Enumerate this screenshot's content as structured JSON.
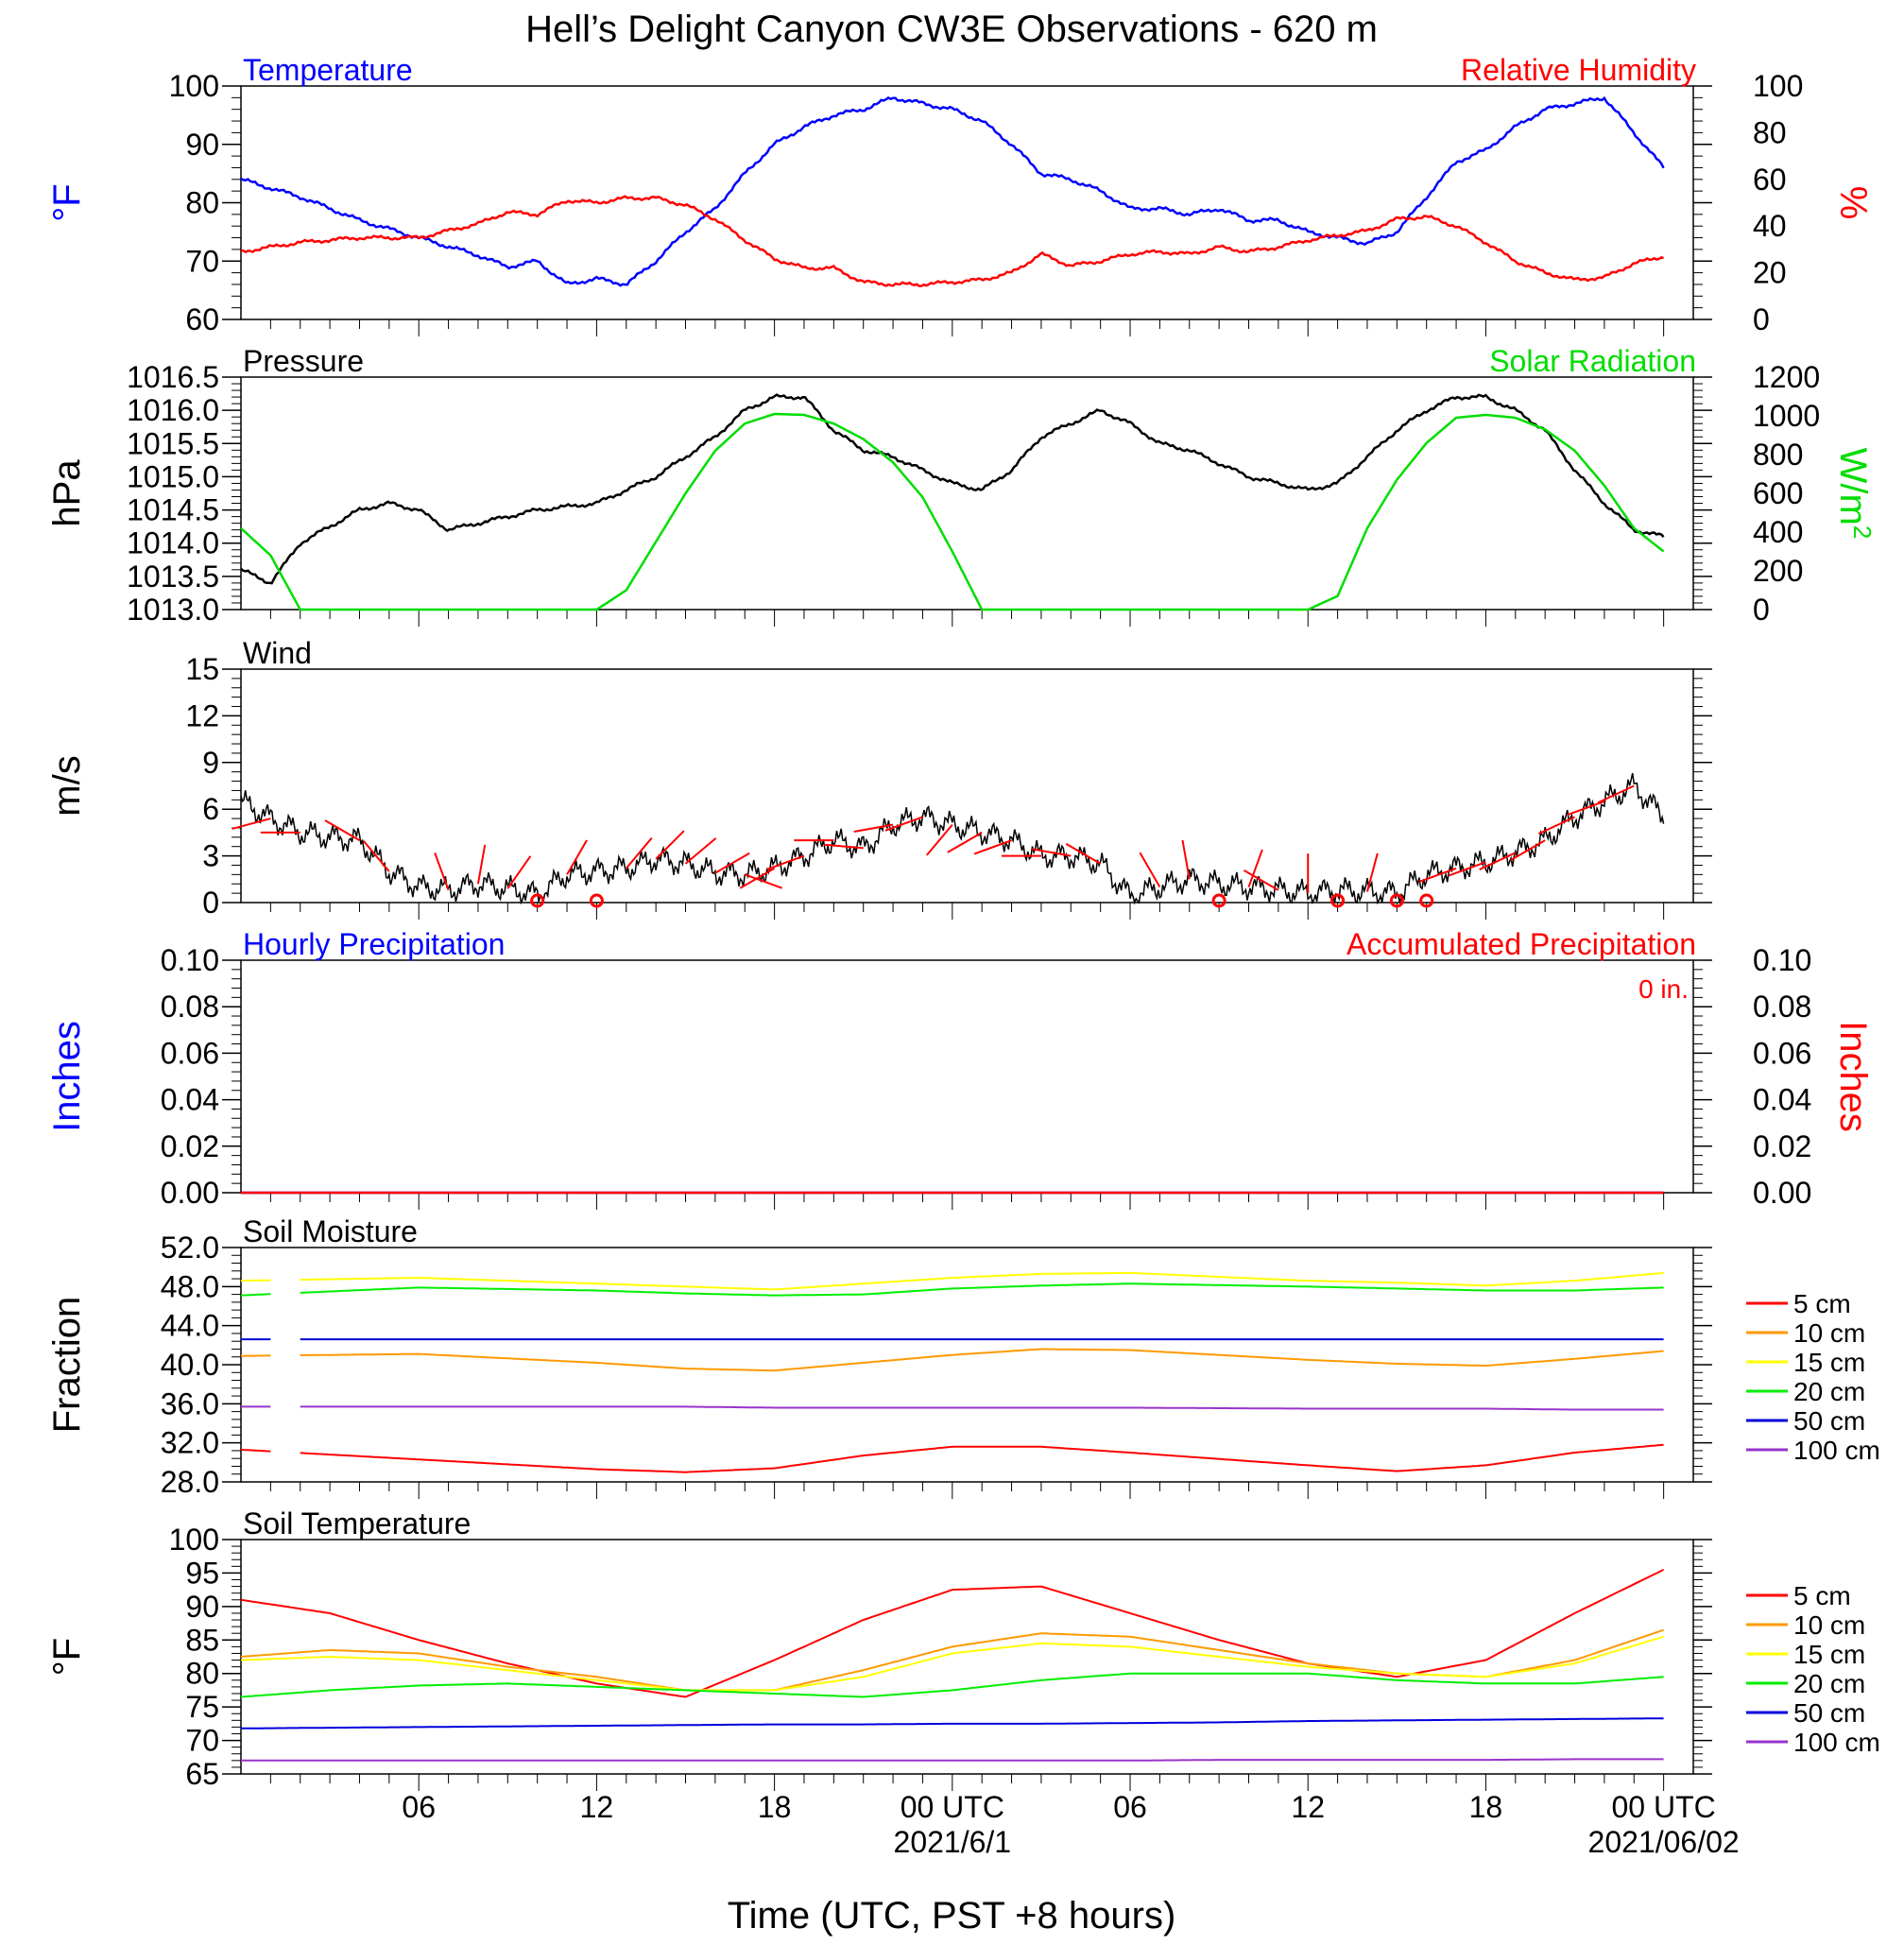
{
  "title": "Hell’s Delight Canyon CW3E Observations - 620 m",
  "xlabel": "Time (UTC, PST +8 hours)",
  "x_ticks": [
    {
      "hour": 6,
      "label": "06"
    },
    {
      "hour": 12,
      "label": "12"
    },
    {
      "hour": 18,
      "label": "18"
    },
    {
      "hour": 24,
      "label": "00 UTC"
    },
    {
      "hour": 30,
      "label": "06"
    },
    {
      "hour": 36,
      "label": "12"
    },
    {
      "hour": 42,
      "label": "18"
    },
    {
      "hour": 48,
      "label": "00 UTC"
    }
  ],
  "date_labels": [
    {
      "hour": 24,
      "label": "2021/6/1"
    },
    {
      "hour": 48,
      "label": "2021/06/02"
    }
  ],
  "colors": {
    "temperature": "#0000ff",
    "humidity": "#ff0000",
    "pressure": "#000000",
    "solar": "#00dd00",
    "wind": "#000000",
    "barb": "#ff0000",
    "depth_5": "#ff0000",
    "depth_10": "#ff9900",
    "depth_15": "#ffff00",
    "depth_20": "#00ee00",
    "depth_50": "#0000dd",
    "depth_100": "#9933cc"
  },
  "chart_data": [
    {
      "type": "line",
      "panel": "temp-rh",
      "left_title": "Temperature",
      "right_title": "Relative Humidity",
      "ylabel_left": "°F",
      "ylabel_right": "%",
      "ylim_left": [
        60,
        100
      ],
      "ylim_right": [
        0,
        100
      ],
      "yticks_left": [
        "60",
        "70",
        "80",
        "90",
        "100"
      ],
      "yticks_right": [
        "0",
        "20",
        "40",
        "60",
        "80",
        "100"
      ],
      "x": [
        0,
        2,
        4,
        6,
        8,
        9,
        10,
        11,
        12,
        13,
        14,
        15,
        16,
        17,
        18,
        19,
        20,
        21,
        22,
        23,
        24,
        25,
        26,
        27,
        28,
        29,
        30,
        31,
        32,
        33,
        34,
        35,
        36,
        37,
        38,
        39,
        40,
        41,
        42,
        43,
        44,
        45,
        46,
        47,
        48
      ],
      "series": [
        {
          "name": "Temperature",
          "axis": "left",
          "values": [
            84,
            81,
            77,
            74,
            71,
            69,
            70,
            66,
            67,
            66,
            70,
            75,
            79,
            85,
            90,
            93,
            95,
            96,
            98,
            97,
            96,
            94,
            90,
            85,
            84,
            82,
            79,
            79,
            78,
            79,
            77,
            77,
            75,
            74,
            73,
            75,
            81,
            87,
            89,
            93,
            96,
            97,
            98,
            92,
            86
          ]
        },
        {
          "name": "Relative Humidity",
          "axis": "right",
          "values": [
            29,
            33,
            35,
            35,
            41,
            46,
            45,
            51,
            50,
            52,
            52,
            49,
            43,
            34,
            26,
            22,
            22,
            16,
            15,
            15,
            16,
            17,
            20,
            28,
            23,
            25,
            28,
            29,
            28,
            31,
            29,
            31,
            34,
            36,
            38,
            43,
            44,
            40,
            33,
            25,
            20,
            17,
            18,
            24,
            27
          ]
        }
      ]
    },
    {
      "type": "line",
      "panel": "pressure-solar",
      "left_title": "Pressure",
      "right_title": "Solar Radiation",
      "ylabel_left": "hPa",
      "ylabel_right": "W/m",
      "ylabel_right_sup": "2",
      "ylim_left": [
        1013.0,
        1016.5
      ],
      "ylim_right": [
        0,
        1200
      ],
      "yticks_left": [
        "1013.0",
        "1013.5",
        "1014.0",
        "1014.5",
        "1015.0",
        "1015.5",
        "1016.0",
        "1016.5"
      ],
      "yticks_right": [
        "0",
        "200",
        "400",
        "600",
        "800",
        "1000",
        "1200"
      ],
      "x": [
        0,
        1,
        2,
        4,
        5,
        6,
        7,
        8,
        9,
        10,
        12,
        13,
        14,
        15,
        16,
        17,
        18,
        19,
        20,
        21,
        22,
        23,
        24,
        25,
        26,
        27,
        28,
        29,
        30,
        31,
        32,
        33,
        34,
        35,
        36,
        37,
        38,
        39,
        40,
        41,
        42,
        43,
        44,
        45,
        46,
        47,
        48
      ],
      "series": [
        {
          "name": "Pressure",
          "axis": "left",
          "values": [
            1013.6,
            1013.4,
            1014.0,
            1014.5,
            1014.6,
            1014.5,
            1014.2,
            1014.3,
            1014.4,
            1014.5,
            1014.6,
            1014.8,
            1015.0,
            1015.3,
            1015.6,
            1016.0,
            1016.2,
            1016.2,
            1015.7,
            1015.4,
            1015.3,
            1015.1,
            1014.9,
            1014.8,
            1015.1,
            1015.6,
            1015.8,
            1016.0,
            1015.8,
            1015.5,
            1015.4,
            1015.2,
            1015.0,
            1014.9,
            1014.8,
            1014.9,
            1015.3,
            1015.7,
            1016.0,
            1016.2,
            1016.2,
            1016.0,
            1015.7,
            1015.1,
            1014.6,
            1014.2,
            1014.1
          ]
        },
        {
          "name": "Solar Radiation",
          "axis": "right",
          "values": [
            420,
            280,
            0,
            0,
            0,
            0,
            0,
            0,
            0,
            0,
            0,
            100,
            350,
            600,
            820,
            960,
            1010,
            1005,
            960,
            880,
            760,
            580,
            300,
            0,
            0,
            0,
            0,
            0,
            0,
            0,
            0,
            0,
            0,
            0,
            0,
            70,
            420,
            670,
            860,
            990,
            1005,
            990,
            930,
            820,
            640,
            420,
            300
          ]
        }
      ]
    },
    {
      "type": "line",
      "panel": "wind",
      "left_title": "Wind",
      "ylabel_left": "m/s",
      "ylim_left": [
        0,
        15
      ],
      "yticks_left": [
        "0",
        "3",
        "6",
        "9",
        "12",
        "15"
      ],
      "x": [
        0,
        1,
        2,
        3,
        4,
        5,
        6,
        7,
        8,
        9,
        10,
        11,
        12,
        13,
        14,
        15,
        16,
        17,
        18,
        19,
        20,
        21,
        22,
        23,
        24,
        25,
        26,
        27,
        28,
        29,
        30,
        31,
        32,
        33,
        34,
        35,
        36,
        37,
        38,
        39,
        40,
        41,
        42,
        43,
        44,
        45,
        46,
        47,
        48
      ],
      "series": [
        {
          "name": "Wind",
          "axis": "left",
          "values": [
            6.5,
            5.4,
            4.5,
            4.2,
            4.0,
            2.0,
            1.0,
            0.8,
            1.2,
            0.9,
            0.5,
            1.8,
            2.0,
            2.2,
            2.8,
            2.5,
            1.9,
            1.8,
            2.2,
            3.0,
            4.0,
            3.5,
            5.0,
            5.5,
            5.0,
            4.5,
            4.0,
            3.0,
            3.0,
            2.5,
            0.4,
            1.0,
            1.5,
            1.2,
            1.0,
            0.8,
            0.6,
            0.8,
            0.7,
            0.6,
            1.8,
            2.2,
            2.6,
            3.2,
            4.0,
            5.5,
            6.5,
            7.5,
            5.5
          ]
        }
      ],
      "barbs": [
        {
          "x": 1,
          "speed": 4.5,
          "dir": 255
        },
        {
          "x": 2,
          "speed": 4.5,
          "dir": 270
        },
        {
          "x": 4,
          "speed": 2.0,
          "dir": 300
        },
        {
          "x": 5,
          "speed": 1.5,
          "dir": 320
        },
        {
          "x": 7,
          "speed": 1.2,
          "dir": 340
        },
        {
          "x": 8,
          "speed": 1.0,
          "dir": 10
        },
        {
          "x": 9,
          "speed": 1.0,
          "dir": 35
        },
        {
          "x": 10,
          "speed": 0,
          "dir": 0
        },
        {
          "x": 11,
          "speed": 1.2,
          "dir": 30
        },
        {
          "x": 12,
          "speed": 0,
          "dir": 0
        },
        {
          "x": 13,
          "speed": 2.0,
          "dir": 40
        },
        {
          "x": 14,
          "speed": 2.0,
          "dir": 45
        },
        {
          "x": 15,
          "speed": 1.5,
          "dir": 50
        },
        {
          "x": 16,
          "speed": 2.0,
          "dir": 60
        },
        {
          "x": 17,
          "speed": 2.0,
          "dir": 110
        },
        {
          "x": 18,
          "speed": 3.0,
          "dir": 240
        },
        {
          "x": 19,
          "speed": 3.5,
          "dir": 250
        },
        {
          "x": 20,
          "speed": 4.0,
          "dir": 270
        },
        {
          "x": 21,
          "speed": 4.0,
          "dir": 275
        },
        {
          "x": 22,
          "speed": 3.5,
          "dir": 260
        },
        {
          "x": 23,
          "speed": 3.5,
          "dir": 250
        },
        {
          "x": 24,
          "speed": 3.0,
          "dir": 220
        },
        {
          "x": 25,
          "speed": 3.0,
          "dir": 240
        },
        {
          "x": 26,
          "speed": 3.0,
          "dir": 250
        },
        {
          "x": 27,
          "speed": 2.5,
          "dir": 270
        },
        {
          "x": 28,
          "speed": 2.5,
          "dir": 280
        },
        {
          "x": 29,
          "speed": 1.5,
          "dir": 300
        },
        {
          "x": 31,
          "speed": 1.5,
          "dir": 330
        },
        {
          "x": 32,
          "speed": 1.0,
          "dir": 350
        },
        {
          "x": 33,
          "speed": 0,
          "dir": 0
        },
        {
          "x": 34,
          "speed": 1.5,
          "dir": 20
        },
        {
          "x": 35,
          "speed": 1.2,
          "dir": 300
        },
        {
          "x": 36,
          "speed": 1.0,
          "dir": 0
        },
        {
          "x": 37,
          "speed": 0,
          "dir": 0
        },
        {
          "x": 38,
          "speed": 1.5,
          "dir": 15
        },
        {
          "x": 39,
          "speed": 0,
          "dir": 0
        },
        {
          "x": 40,
          "speed": 0,
          "dir": 0
        },
        {
          "x": 41,
          "speed": 2.0,
          "dir": 250
        },
        {
          "x": 42,
          "speed": 2.5,
          "dir": 250
        },
        {
          "x": 43,
          "speed": 3.0,
          "dir": 245
        },
        {
          "x": 44,
          "speed": 3.5,
          "dir": 240
        },
        {
          "x": 45,
          "speed": 4.0,
          "dir": 245
        },
        {
          "x": 46,
          "speed": 5.0,
          "dir": 250
        },
        {
          "x": 47,
          "speed": 5.5,
          "dir": 245
        }
      ]
    },
    {
      "type": "line",
      "panel": "precip",
      "left_title": "Hourly Precipitation",
      "right_title": "Accumulated Precipitation",
      "annotation": "0 in.",
      "ylabel_left": "Inches",
      "ylabel_right": "Inches",
      "ylim_left": [
        0,
        0.1
      ],
      "ylim_right": [
        0,
        0.1
      ],
      "yticks_left": [
        "0.00",
        "0.02",
        "0.04",
        "0.06",
        "0.08",
        "0.10"
      ],
      "yticks_right": [
        "0.00",
        "0.02",
        "0.04",
        "0.06",
        "0.08",
        "0.10"
      ],
      "x": [
        0,
        48
      ],
      "series": [
        {
          "name": "Hourly Precipitation",
          "axis": "left",
          "values": [
            0,
            0
          ]
        },
        {
          "name": "Accumulated Precipitation",
          "axis": "right",
          "values": [
            0,
            0
          ]
        }
      ]
    },
    {
      "type": "line",
      "panel": "soil-moisture",
      "left_title": "Soil Moisture",
      "ylabel_left": "Fraction",
      "ylim_left": [
        28.0,
        52.0
      ],
      "yticks_left": [
        "28.0",
        "32.0",
        "36.0",
        "40.0",
        "44.0",
        "48.0",
        "52.0"
      ],
      "legend_labels": [
        "5 cm",
        "10 cm",
        "15 cm",
        "20 cm",
        "50 cm",
        "100 cm"
      ],
      "gap_hours": [
        1.0,
        2.0
      ],
      "x": [
        0,
        6,
        12,
        15,
        18,
        21,
        24,
        27,
        30,
        36,
        39,
        42,
        45,
        48
      ],
      "series": [
        {
          "name": "5 cm",
          "color_key": "depth_5",
          "axis": "left",
          "values": [
            31.3,
            30.3,
            29.3,
            29.0,
            29.4,
            30.7,
            31.6,
            31.6,
            31.0,
            29.7,
            29.1,
            29.7,
            31.0,
            31.8
          ]
        },
        {
          "name": "10 cm",
          "color_key": "depth_10",
          "axis": "left",
          "values": [
            40.9,
            41.1,
            40.2,
            39.6,
            39.4,
            40.2,
            41.0,
            41.6,
            41.5,
            40.5,
            40.1,
            39.9,
            40.6,
            41.4
          ]
        },
        {
          "name": "15 cm",
          "color_key": "depth_15",
          "axis": "left",
          "values": [
            48.6,
            48.9,
            48.3,
            48.0,
            47.7,
            48.3,
            48.9,
            49.3,
            49.4,
            48.6,
            48.4,
            48.1,
            48.6,
            49.4
          ]
        },
        {
          "name": "20 cm",
          "color_key": "depth_20",
          "axis": "left",
          "values": [
            47.1,
            47.9,
            47.6,
            47.3,
            47.1,
            47.2,
            47.8,
            48.1,
            48.3,
            48.0,
            47.8,
            47.6,
            47.6,
            47.9
          ]
        },
        {
          "name": "50 cm",
          "color_key": "depth_50",
          "axis": "left",
          "values": [
            42.6,
            42.6,
            42.6,
            42.6,
            42.6,
            42.6,
            42.6,
            42.6,
            42.6,
            42.6,
            42.6,
            42.6,
            42.6,
            42.6
          ]
        },
        {
          "name": "100 cm",
          "color_key": "depth_100",
          "axis": "left",
          "values": [
            35.7,
            35.7,
            35.7,
            35.7,
            35.6,
            35.6,
            35.6,
            35.6,
            35.6,
            35.5,
            35.5,
            35.5,
            35.4,
            35.4
          ]
        }
      ]
    },
    {
      "type": "line",
      "panel": "soil-temperature",
      "left_title": "Soil Temperature",
      "ylabel_left": "°F",
      "ylim_left": [
        65,
        100
      ],
      "yticks_left": [
        "65",
        "70",
        "75",
        "80",
        "85",
        "90",
        "95",
        "100"
      ],
      "legend_labels": [
        "5 cm",
        "10 cm",
        "15 cm",
        "20 cm",
        "50 cm",
        "100 cm"
      ],
      "x": [
        0,
        3,
        6,
        9,
        12,
        15,
        18,
        21,
        24,
        27,
        30,
        33,
        36,
        39,
        42,
        45,
        48
      ],
      "series": [
        {
          "name": "5 cm",
          "color_key": "depth_5",
          "axis": "left",
          "values": [
            91,
            89,
            85,
            81.5,
            78.5,
            76.5,
            82,
            88,
            92.5,
            93,
            89,
            85,
            81.5,
            79.5,
            82,
            89,
            95.5
          ]
        },
        {
          "name": "10 cm",
          "color_key": "depth_10",
          "axis": "left",
          "values": [
            82.5,
            83.5,
            83,
            81,
            79.5,
            77.5,
            77.5,
            80.5,
            84,
            86,
            85.5,
            83.5,
            81.5,
            80,
            79.5,
            82,
            86.5
          ]
        },
        {
          "name": "15 cm",
          "color_key": "depth_15",
          "axis": "left",
          "values": [
            82,
            82.5,
            82,
            80.5,
            79,
            77.5,
            77.5,
            79.5,
            83,
            84.5,
            84,
            82.5,
            81,
            80,
            79.5,
            81.5,
            85.5
          ]
        },
        {
          "name": "20 cm",
          "color_key": "depth_20",
          "axis": "left",
          "values": [
            76.5,
            77.5,
            78.2,
            78.5,
            78,
            77.5,
            77,
            76.5,
            77.5,
            79,
            80,
            80,
            80,
            79,
            78.5,
            78.5,
            79.5
          ]
        },
        {
          "name": "50 cm",
          "color_key": "depth_50",
          "axis": "left",
          "values": [
            71.8,
            71.9,
            72,
            72.1,
            72.2,
            72.3,
            72.4,
            72.4,
            72.5,
            72.5,
            72.6,
            72.7,
            72.9,
            73,
            73.1,
            73.2,
            73.3
          ]
        },
        {
          "name": "100 cm",
          "color_key": "depth_100",
          "axis": "left",
          "values": [
            67,
            67,
            67,
            67,
            67,
            67,
            67,
            67,
            67,
            67,
            67,
            67.1,
            67.1,
            67.1,
            67.1,
            67.2,
            67.2
          ]
        }
      ]
    }
  ]
}
